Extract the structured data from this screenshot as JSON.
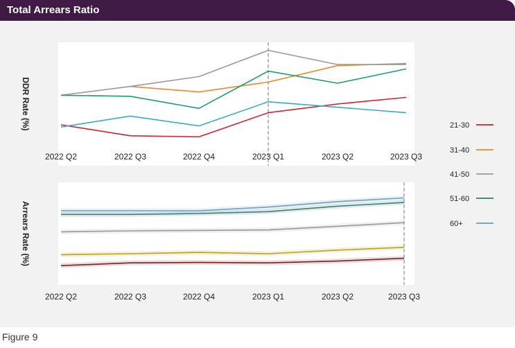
{
  "header": {
    "title": "Total Arrears Ratio"
  },
  "caption": "Figure 9",
  "colors": {
    "header_bg": "#3f1a44",
    "21-30": "#d0202e",
    "31-40": "#e8892b",
    "41-50": "#999999",
    "51-60": "#1f9a78",
    "60+": "#34adbf"
  },
  "chart_data": [
    {
      "type": "line",
      "ylabel": "DDR Rate (%)",
      "xlabel": "",
      "categories": [
        "2022 Q2",
        "2022 Q3",
        "2022 Q4",
        "2023 Q1",
        "2023 Q2",
        "2023 Q3"
      ],
      "ylim": [
        0,
        100
      ],
      "annotation": "dashed vertical line at 2023 Q1",
      "series": [
        {
          "name": "21-30",
          "color": "#d0202e",
          "values": [
            31,
            21,
            20,
            42,
            50,
            56
          ]
        },
        {
          "name": "31-40",
          "color": "#e8892b",
          "values": [
            null,
            66,
            61,
            70,
            85,
            87
          ]
        },
        {
          "name": "41-50",
          "color": "#999999",
          "values": [
            58,
            66,
            75,
            99,
            86,
            86
          ]
        },
        {
          "name": "51-60",
          "color": "#1f9a78",
          "values": [
            58,
            57,
            46,
            80,
            69,
            82
          ]
        },
        {
          "name": "60+",
          "color": "#34adbf",
          "values": [
            29,
            39,
            30,
            52,
            47,
            42
          ]
        }
      ]
    },
    {
      "type": "line",
      "ylabel": "Arrears Rate (%)",
      "xlabel": "",
      "categories": [
        "2022 Q2",
        "2022 Q3",
        "2022 Q4",
        "2023 Q1",
        "2023 Q2",
        "2023 Q3"
      ],
      "ylim": [
        0,
        100
      ],
      "annotation": "dashed vertical line at 2023 Q3",
      "series": [
        {
          "name": "21-30",
          "color": "#7a2020",
          "values": [
            15,
            18,
            18.5,
            18,
            20,
            23
          ]
        },
        {
          "name": "31-40",
          "color": "#b3a51e",
          "values": [
            27,
            28,
            29.5,
            28,
            32,
            35
          ]
        },
        {
          "name": "41-50",
          "color": "#999999",
          "values": [
            52,
            53,
            53.5,
            54,
            58,
            62
          ]
        },
        {
          "name": "51-60",
          "color": "#3f7d78",
          "values": [
            71,
            71,
            72,
            74,
            80,
            84
          ]
        },
        {
          "name": "60+",
          "color": "#6a9fc2",
          "values": [
            75,
            75,
            75,
            79,
            85,
            89
          ]
        }
      ]
    }
  ],
  "legend": [
    {
      "label": "21-30",
      "color": "#d0202e"
    },
    {
      "label": "31-40",
      "color": "#e8892b"
    },
    {
      "label": "41-50",
      "color": "#999999"
    },
    {
      "label": "51-60",
      "color": "#2e7a6f"
    },
    {
      "label": "60+",
      "color": "#5b9fc4"
    }
  ]
}
